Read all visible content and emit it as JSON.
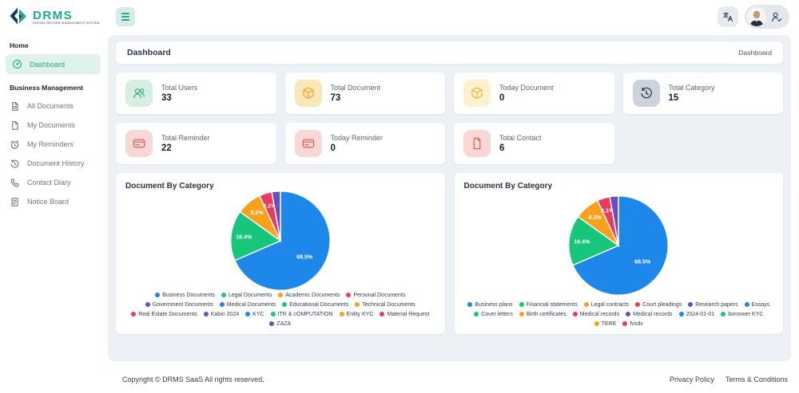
{
  "brand": {
    "name": "DRMS",
    "tagline": "DIGITAL RECORD MANAGEMENT SYSTEM",
    "accent_color": "#1fa98e",
    "logo_colors": [
      "#1d3d5c",
      "#28a88c"
    ]
  },
  "topbar": {
    "menu_icon": "hamburger-icon",
    "language_icon": "translate-icon",
    "avatar_icon": "user-avatar",
    "account_icon": "user-edit-icon"
  },
  "sidebar": {
    "sections": [
      {
        "title": "Home",
        "items": [
          {
            "label": "Dashboard",
            "icon": "dashboard-icon",
            "active": true
          }
        ]
      },
      {
        "title": "Business Management",
        "items": [
          {
            "label": "All Documents",
            "icon": "file-text-icon"
          },
          {
            "label": "My Documents",
            "icon": "file-icon"
          },
          {
            "label": "My Reminders",
            "icon": "alarm-icon"
          },
          {
            "label": "Document History",
            "icon": "history-icon"
          },
          {
            "label": "Contact Diary",
            "icon": "phone-icon"
          },
          {
            "label": "Notice Board",
            "icon": "board-icon"
          }
        ]
      }
    ]
  },
  "header": {
    "title": "Dashboard",
    "breadcrumb": "Dashboard"
  },
  "stats": [
    {
      "label": "Total Users",
      "value": "33",
      "icon": "users-icon",
      "icon_bg": "#d6efe2",
      "icon_color": "#31a97e"
    },
    {
      "label": "Total Document",
      "value": "73",
      "icon": "box-icon",
      "icon_bg": "#fbe7b6",
      "icon_color": "#e9a328"
    },
    {
      "label": "Today Document",
      "value": "0",
      "icon": "box-icon",
      "icon_bg": "#fdf2cf",
      "icon_color": "#ecb52d"
    },
    {
      "label": "Total Category",
      "value": "15",
      "icon": "clock-history-icon",
      "icon_bg": "#ccd3dd",
      "icon_color": "#232f3e"
    },
    {
      "label": "Total Reminder",
      "value": "22",
      "icon": "card-icon",
      "icon_bg": "#f9d7d7",
      "icon_color": "#e25c5c"
    },
    {
      "label": "Today Reminder",
      "value": "0",
      "icon": "card-icon",
      "icon_bg": "#f9d7d7",
      "icon_color": "#e25c5c"
    },
    {
      "label": "Total Contact",
      "value": "6",
      "icon": "document-icon",
      "icon_bg": "#f9d7d7",
      "icon_color": "#e25c5c"
    }
  ],
  "chart_data": [
    {
      "type": "pie",
      "title": "Document By Category",
      "values": [
        68.5,
        16.4,
        8.2,
        4.1,
        2.8
      ],
      "labels": [
        "68.5%",
        "16.4%",
        "8.2%",
        "4.1%",
        ""
      ],
      "unit": "percent",
      "colors": [
        "#1e88ea",
        "#17c67a",
        "#f9a11d",
        "#e93a5f",
        "#6a4fc1"
      ],
      "legend_position": "bottom",
      "legend": [
        "Business Documents",
        "Legal Documents",
        "Academic Documents",
        "Personal Documents",
        "Government Documents",
        "Medical Documents",
        "Educational Documents",
        "Technical Documents",
        "Real Estate Documents",
        "Kabin 2024",
        "KYC",
        "ITR & cOMPUTATION",
        "Entity KYC",
        "Material Request",
        "ZAZA"
      ]
    },
    {
      "type": "pie",
      "title": "Document By Category",
      "values": [
        68.5,
        16.4,
        8.2,
        4.1,
        2.8
      ],
      "labels": [
        "68.5%",
        "16.4%",
        "8.2%",
        "4.1%",
        ""
      ],
      "unit": "percent",
      "colors": [
        "#1e88ea",
        "#17c67a",
        "#f9a11d",
        "#e93a5f",
        "#6a4fc1"
      ],
      "legend_position": "bottom",
      "legend": [
        "Business plans",
        "Financial statements",
        "Legal contracts",
        "Court pleadings",
        "Research papers",
        "Essays",
        "Cover letters",
        "Birth certificates",
        "Medical records",
        "Medical records",
        "2024-01-01",
        "borrower KYC",
        "TERE",
        "fvsdv"
      ]
    }
  ],
  "footer": {
    "copyright": "Copyright © DRMS SaaS All rights reserved.",
    "links": [
      "Privacy Policy",
      "Terms & Conditions"
    ]
  }
}
